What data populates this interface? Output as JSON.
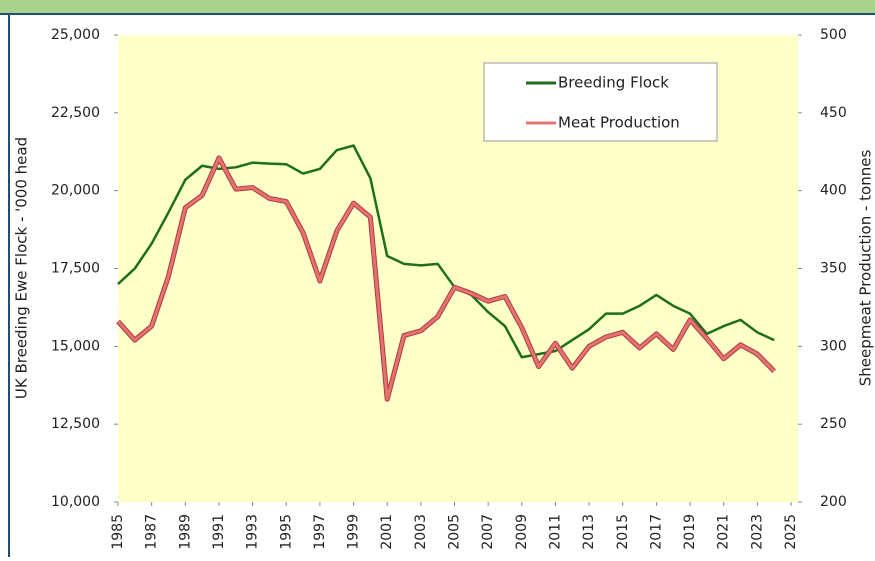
{
  "chart_data": {
    "type": "line",
    "y_label": "UK Breeding Ewe Flock - '000 head",
    "y2_label": "Sheepmeat Production - tonnes",
    "x": [
      1985,
      1986,
      1987,
      1988,
      1989,
      1990,
      1991,
      1992,
      1993,
      1994,
      1995,
      1996,
      1997,
      1998,
      1999,
      2000,
      2001,
      2002,
      2003,
      2004,
      2005,
      2006,
      2007,
      2008,
      2009,
      2010,
      2011,
      2012,
      2013,
      2014,
      2015,
      2016,
      2017,
      2018,
      2019,
      2020,
      2021,
      2022,
      2023,
      2024
    ],
    "series": [
      {
        "name": "Breeding Flock",
        "color": "#1f6e1f",
        "values": [
          17000,
          17500,
          18300,
          19300,
          20350,
          20800,
          20700,
          20750,
          20900,
          20870,
          20850,
          20550,
          20700,
          21300,
          21450,
          20400,
          17900,
          17650,
          17600,
          17650,
          16900,
          16650,
          16100,
          15650,
          14650,
          14750,
          14850,
          15200,
          15550,
          16050,
          16050,
          16300,
          16650,
          16300,
          16050,
          15400,
          15650,
          15850,
          15450,
          15200
        ]
      },
      {
        "name": "Meat Production",
        "color": "#e37373",
        "axis": "y2",
        "values": [
          316,
          304,
          313,
          345,
          389,
          397,
          421,
          401,
          402,
          395,
          393,
          373,
          342,
          374,
          392,
          383,
          266,
          307,
          310,
          319,
          338,
          334,
          329,
          332,
          312,
          287,
          302,
          286,
          300,
          306,
          309,
          299,
          308,
          298,
          317,
          305,
          292,
          301,
          295,
          284
        ]
      }
    ],
    "xlim": [
      1985,
      2025
    ],
    "xticks": [
      1985,
      1987,
      1989,
      1991,
      1993,
      1995,
      1997,
      1999,
      2001,
      2003,
      2005,
      2007,
      2009,
      2011,
      2013,
      2015,
      2017,
      2019,
      2021,
      2023,
      2025
    ],
    "ylim": [
      10000,
      25000
    ],
    "yticks": [
      {
        "value": 10000,
        "label": "10,000"
      },
      {
        "value": 12500,
        "label": "12,500"
      },
      {
        "value": 15000,
        "label": "15,000"
      },
      {
        "value": 17500,
        "label": "17,500"
      },
      {
        "value": 20000,
        "label": "20,000"
      },
      {
        "value": 22500,
        "label": "22,500"
      },
      {
        "value": 25000,
        "label": "25,000"
      }
    ],
    "y2lim": [
      200,
      500
    ],
    "y2ticks": [
      200,
      250,
      300,
      350,
      400,
      450,
      500
    ],
    "legend": "top-right"
  }
}
